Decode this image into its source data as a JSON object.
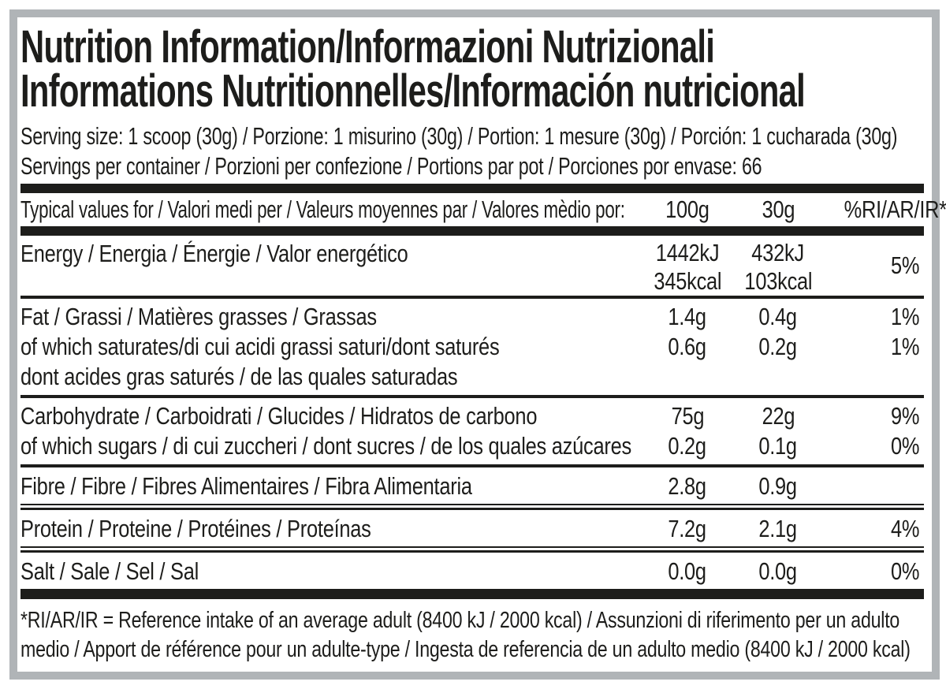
{
  "label": {
    "title_line1": "Nutrition Information/Informazioni Nutrizionali",
    "title_line2": "Informations Nutritionnelles/Información nutricional",
    "serving_size": "Serving size: 1 scoop (30g) / Porzione: 1 misurino (30g) / Portion: 1 mesure (30g) / Porción: 1 cucharada (30g)",
    "servings_per_container": "Servings per container / Porzioni per confezione / Portions par pot / Porciones por envase: 66",
    "footnote": "*RI/AR/IR = Reference intake of an average adult (8400 kJ / 2000 kcal)  / Assunzioni di riferimento per un adulto medio / Apport de référence pour un adulte-type / Ingesta de referencia de un adulto medio (8400 kJ / 2000 kcal)"
  },
  "table": {
    "header": {
      "label": "Typical values for / Valori medi per / Valeurs moyennes par / Valores mèdio por:",
      "col_100g": "100g",
      "col_30g": "30g",
      "col_ri": "%RI/AR/IR*"
    },
    "energy": {
      "label": "Energy / Energia / Énergie / Valor energético",
      "v100_kj": "1442kJ",
      "v100_kcal": "345kcal",
      "v30_kj": "432kJ",
      "v30_kcal": "103kcal",
      "ri": "5%"
    },
    "fat": {
      "line1": {
        "label": "Fat / Grassi / Matières grasses / Grassas",
        "v100": "1.4g",
        "v30": "0.4g",
        "ri": "1%"
      },
      "line2": {
        "label": "of which saturates/di cui acidi grassi saturi/dont saturés",
        "v100": "0.6g",
        "v30": "0.2g",
        "ri": "1%"
      },
      "line3": {
        "label": "dont acides gras saturés / de las quales saturadas"
      }
    },
    "carbohydrate": {
      "line1": {
        "label": "Carbohydrate / Carboidrati / Glucides / Hidratos de carbono",
        "v100": "75g",
        "v30": "22g",
        "ri": "9%"
      },
      "line2": {
        "label": "of which sugars / di cui zuccheri / dont sucres / de los quales azúcares",
        "v100": "0.2g",
        "v30": "0.1g",
        "ri": "0%"
      }
    },
    "fibre": {
      "label": "Fibre / Fibre / Fibres Alimentaires / Fibra Alimentaria",
      "v100": "2.8g",
      "v30": "0.9g",
      "ri": ""
    },
    "protein": {
      "label": "Protein / Proteine / Protéines / Proteínas",
      "v100": "7.2g",
      "v30": "2.1g",
      "ri": "4%"
    },
    "salt": {
      "label": "Salt / Sale / Sel / Sal",
      "v100": "0.0g",
      "v30": "0.0g",
      "ri": "0%"
    }
  },
  "colors": {
    "text": "#1d1d1b",
    "border_gray": "#b0b4b7",
    "background": "#ffffff"
  }
}
